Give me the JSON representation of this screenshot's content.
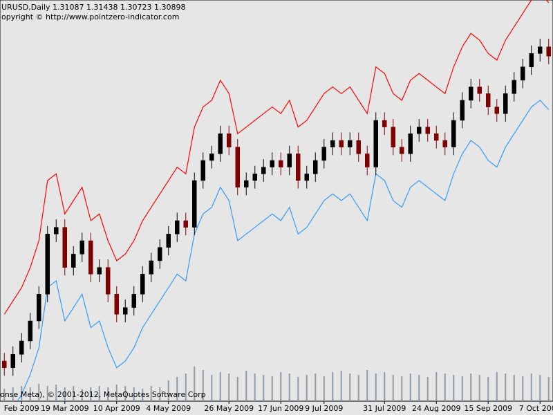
{
  "chart_data": {
    "type": "candlestick",
    "title": "URUSD,Daily  1.31087 1.31438 1.30723 1.30898",
    "subtitle": "opyright © http://www.pointzero-indicator.com",
    "footer": "onse Meta), © 2001-2012, MetaQuotes Software Corp",
    "categories": [
      null,
      null,
      "Feb 2009",
      null,
      null,
      null,
      null,
      "19 Mar 2009",
      null,
      null,
      null,
      null,
      null,
      "10 Apr 2009",
      null,
      null,
      null,
      null,
      null,
      "4 May 2009",
      null,
      null,
      null,
      null,
      null,
      null,
      "26 May 2009",
      null,
      null,
      null,
      null,
      null,
      "17 Jun 2009",
      null,
      null,
      null,
      null,
      "9 Jul 2009",
      null,
      null,
      null,
      null,
      null,
      null,
      "31 Jul 2009",
      null,
      null,
      null,
      null,
      null,
      "24 Aug 2009",
      null,
      null,
      null,
      null,
      null,
      "15 Sep 2009",
      null,
      null,
      null,
      null,
      null,
      "7 Oct 2009",
      null
    ],
    "open": [
      1.25,
      1.245,
      1.255,
      1.265,
      1.28,
      1.3,
      1.345,
      1.35,
      1.32,
      1.33,
      1.34,
      1.315,
      1.32,
      1.3,
      1.285,
      1.29,
      1.3,
      1.315,
      1.325,
      1.335,
      1.345,
      1.355,
      1.35,
      1.385,
      1.4,
      1.405,
      1.42,
      1.41,
      1.38,
      1.385,
      1.39,
      1.395,
      1.4,
      1.395,
      1.405,
      1.385,
      1.39,
      1.4,
      1.41,
      1.415,
      1.41,
      1.415,
      1.405,
      1.395,
      1.43,
      1.425,
      1.41,
      1.405,
      1.42,
      1.425,
      1.42,
      1.415,
      1.41,
      1.43,
      1.445,
      1.455,
      1.45,
      1.44,
      1.435,
      1.45,
      1.46,
      1.47,
      1.48,
      1.485
    ],
    "high": [
      1.256,
      1.261,
      1.271,
      1.286,
      1.306,
      1.351,
      1.356,
      1.356,
      1.336,
      1.346,
      1.346,
      1.326,
      1.326,
      1.306,
      1.296,
      1.306,
      1.321,
      1.331,
      1.341,
      1.351,
      1.361,
      1.361,
      1.391,
      1.406,
      1.411,
      1.426,
      1.426,
      1.416,
      1.391,
      1.396,
      1.401,
      1.406,
      1.406,
      1.411,
      1.411,
      1.396,
      1.406,
      1.416,
      1.421,
      1.421,
      1.421,
      1.421,
      1.411,
      1.436,
      1.436,
      1.431,
      1.416,
      1.426,
      1.431,
      1.431,
      1.426,
      1.421,
      1.436,
      1.451,
      1.461,
      1.461,
      1.456,
      1.446,
      1.456,
      1.466,
      1.476,
      1.486,
      1.491,
      1.491
    ],
    "low": [
      1.239,
      1.239,
      1.249,
      1.259,
      1.274,
      1.294,
      1.339,
      1.314,
      1.314,
      1.324,
      1.309,
      1.309,
      1.294,
      1.279,
      1.279,
      1.284,
      1.294,
      1.309,
      1.319,
      1.329,
      1.339,
      1.344,
      1.344,
      1.379,
      1.394,
      1.399,
      1.404,
      1.374,
      1.374,
      1.379,
      1.384,
      1.389,
      1.389,
      1.389,
      1.379,
      1.379,
      1.384,
      1.394,
      1.404,
      1.404,
      1.404,
      1.399,
      1.389,
      1.389,
      1.419,
      1.404,
      1.399,
      1.399,
      1.414,
      1.414,
      1.409,
      1.404,
      1.404,
      1.424,
      1.439,
      1.444,
      1.434,
      1.429,
      1.429,
      1.444,
      1.454,
      1.464,
      1.474,
      1.472
    ],
    "close": [
      1.245,
      1.255,
      1.265,
      1.28,
      1.3,
      1.345,
      1.35,
      1.32,
      1.33,
      1.34,
      1.315,
      1.32,
      1.3,
      1.285,
      1.29,
      1.3,
      1.315,
      1.325,
      1.335,
      1.345,
      1.355,
      1.35,
      1.385,
      1.4,
      1.405,
      1.42,
      1.41,
      1.38,
      1.385,
      1.39,
      1.395,
      1.4,
      1.395,
      1.405,
      1.385,
      1.39,
      1.4,
      1.41,
      1.415,
      1.41,
      1.415,
      1.405,
      1.395,
      1.43,
      1.425,
      1.41,
      1.405,
      1.42,
      1.425,
      1.42,
      1.415,
      1.41,
      1.43,
      1.445,
      1.455,
      1.45,
      1.44,
      1.435,
      1.45,
      1.46,
      1.47,
      1.48,
      1.485,
      1.478
    ],
    "up_color": "#000000",
    "down_color": "#800000",
    "bands": [
      {
        "color": "#ff0000",
        "values": [
          1.285,
          1.295,
          1.305,
          1.32,
          1.34,
          1.385,
          1.39,
          1.36,
          1.37,
          1.38,
          1.355,
          1.36,
          1.34,
          1.325,
          1.33,
          1.34,
          1.355,
          1.365,
          1.375,
          1.385,
          1.395,
          1.39,
          1.425,
          1.44,
          1.445,
          1.46,
          1.45,
          1.42,
          1.425,
          1.43,
          1.435,
          1.44,
          1.435,
          1.445,
          1.425,
          1.43,
          1.44,
          1.45,
          1.455,
          1.45,
          1.455,
          1.445,
          1.435,
          1.47,
          1.465,
          1.45,
          1.445,
          1.46,
          1.465,
          1.46,
          1.455,
          1.45,
          1.47,
          1.485,
          1.495,
          1.49,
          1.48,
          1.475,
          1.49,
          1.5,
          1.51,
          1.52,
          1.525,
          1.518
        ]
      },
      {
        "color": "#3399ff",
        "values": [
          1.205,
          1.215,
          1.225,
          1.24,
          1.26,
          1.305,
          1.31,
          1.28,
          1.29,
          1.3,
          1.275,
          1.28,
          1.26,
          1.245,
          1.25,
          1.26,
          1.275,
          1.285,
          1.295,
          1.305,
          1.315,
          1.31,
          1.345,
          1.36,
          1.365,
          1.38,
          1.37,
          1.34,
          1.345,
          1.35,
          1.355,
          1.36,
          1.355,
          1.365,
          1.345,
          1.35,
          1.36,
          1.37,
          1.375,
          1.37,
          1.375,
          1.365,
          1.355,
          1.39,
          1.385,
          1.37,
          1.365,
          1.38,
          1.385,
          1.38,
          1.375,
          1.37,
          1.39,
          1.405,
          1.415,
          1.41,
          1.4,
          1.395,
          1.41,
          1.42,
          1.43,
          1.44,
          1.445,
          1.438
        ]
      }
    ],
    "volume": {
      "color": "#8f9aa6",
      "ylim": [
        0,
        100
      ],
      "values": [
        18,
        20,
        22,
        20,
        25,
        22,
        24,
        20,
        22,
        18,
        20,
        22,
        20,
        24,
        22,
        20,
        18,
        22,
        20,
        30,
        35,
        40,
        50,
        45,
        38,
        42,
        40,
        35,
        44,
        40,
        38,
        36,
        42,
        40,
        35,
        38,
        40,
        36,
        42,
        44,
        40,
        38,
        45,
        40,
        42,
        38,
        36,
        40,
        38,
        35,
        42,
        40,
        38,
        36,
        40,
        38,
        35,
        42,
        40,
        38,
        36,
        40,
        38,
        35
      ]
    },
    "ylim": [
      1.22,
      1.52
    ]
  }
}
